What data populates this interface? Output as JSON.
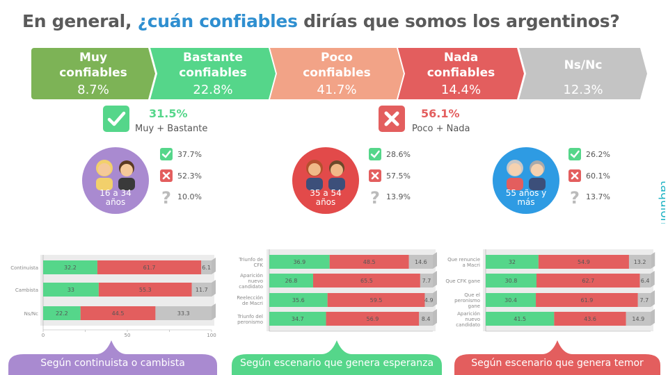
{
  "title": {
    "prefix": "En general, ",
    "highlight": "¿cuán confiables",
    "suffix": " dirías que somos los argentinos?"
  },
  "top_bar": [
    {
      "line1": "Muy",
      "line2": "confiables",
      "value": "8.7%",
      "color": "#7db356"
    },
    {
      "line1": "Bastante",
      "line2": "confiables",
      "value": "22.8%",
      "color": "#55d68a"
    },
    {
      "line1": "Poco",
      "line2": "confiables",
      "value": "41.7%",
      "color": "#f2a387"
    },
    {
      "line1": "Nada",
      "line2": "confiables",
      "value": "14.4%",
      "color": "#e35e5e"
    },
    {
      "line1": "Ns/Nc",
      "line2": "",
      "value": "12.3%",
      "color": "#c4c4c4"
    }
  ],
  "summary": {
    "positive": {
      "value": "31.5%",
      "label": "Muy + Bastante",
      "color": "#55d68a"
    },
    "negative": {
      "value": "56.1%",
      "label": "Poco + Nada",
      "color": "#e35e5e"
    }
  },
  "age_groups": [
    {
      "label1": "16 a 34",
      "label2": "años",
      "color": "#a98ad0",
      "trust": "37.7%",
      "distrust": "52.3%",
      "nsnc": "10.0%"
    },
    {
      "label1": "35 a 54",
      "label2": "años",
      "color": "#e24a4a",
      "trust": "28.6%",
      "distrust": "57.5%",
      "nsnc": "13.9%"
    },
    {
      "label1": "55 años y",
      "label2": "más",
      "color": "#2e9be3",
      "trust": "26.2%",
      "distrust": "60.1%",
      "nsnc": "13.7%"
    }
  ],
  "colors": {
    "green": "#55d68a",
    "red": "#e35e5e",
    "gray": "#c4c4c4"
  },
  "chart_data": [
    {
      "type": "bar",
      "stacked": true,
      "orientation": "horizontal",
      "categories": [
        "Continuista",
        "Cambista",
        "Ns/Nc"
      ],
      "series": [
        {
          "values": [
            32.2,
            33,
            22.2
          ]
        },
        {
          "values": [
            61.7,
            55.3,
            44.5
          ]
        },
        {
          "values": [
            6.1,
            11.7,
            33.3
          ]
        }
      ],
      "xlim": [
        0,
        100
      ],
      "xticks": [
        "0",
        "",
        "50",
        "",
        "100"
      ],
      "banner": "Según continuista o cambista",
      "banner_color": "#a98ad0"
    },
    {
      "type": "bar",
      "stacked": true,
      "orientation": "horizontal",
      "categories": [
        [
          "Triunfo de",
          "CFK"
        ],
        [
          "Aparición",
          "nuevo",
          "candidato"
        ],
        [
          "Reelección",
          "de Macri"
        ],
        [
          "Triunfo del",
          "peronismo"
        ]
      ],
      "series": [
        {
          "values": [
            36.9,
            26.8,
            35.6,
            34.7
          ]
        },
        {
          "values": [
            48.5,
            65.5,
            59.5,
            56.9
          ]
        },
        {
          "values": [
            14.6,
            7.7,
            4.9,
            8.4
          ]
        }
      ],
      "xlim": [
        0,
        100
      ],
      "banner": "Según escenario que genera esperanza",
      "banner_color": "#55d68a"
    },
    {
      "type": "bar",
      "stacked": true,
      "orientation": "horizontal",
      "categories": [
        [
          "Que renuncie",
          "a Macri"
        ],
        [
          "Que CFK gane"
        ],
        [
          "Que el",
          "peronismo",
          "gane"
        ],
        [
          "Aparición",
          "nuevo",
          "candidato"
        ]
      ],
      "series": [
        {
          "values": [
            32,
            30.8,
            30.4,
            41.5
          ]
        },
        {
          "values": [
            54.9,
            62.7,
            61.9,
            43.6
          ]
        },
        {
          "values": [
            13.2,
            6.4,
            7.7,
            14.9
          ]
        }
      ],
      "xlim": [
        0,
        100
      ],
      "banner": "Según escenario que genera temor",
      "banner_color": "#e35e5e"
    }
  ],
  "logo": {
    "text": "taquion"
  }
}
